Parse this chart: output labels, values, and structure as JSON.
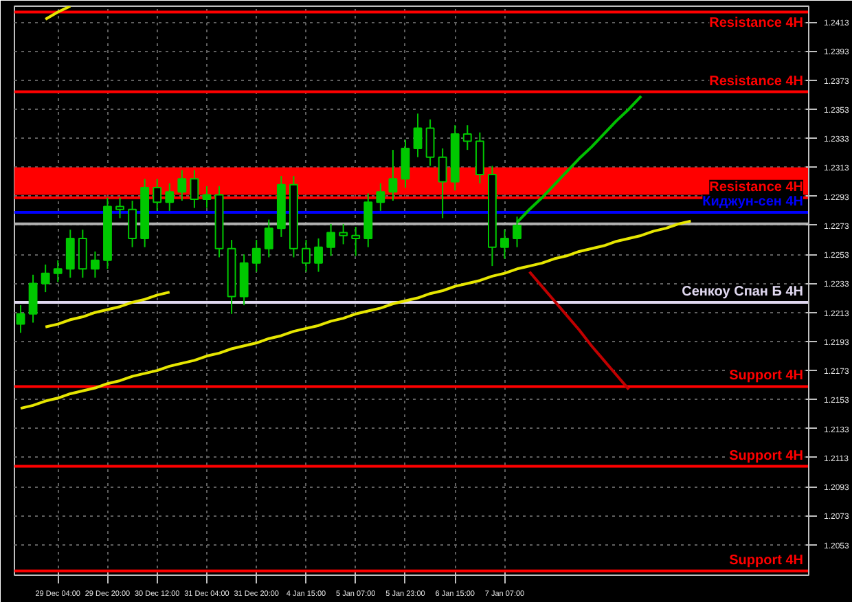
{
  "chart_data": {
    "type": "candlestick",
    "color": "#00c800",
    "categories": [
      null,
      null,
      null,
      "29 Dec 04:00",
      null,
      null,
      null,
      "29 Dec 20:00",
      null,
      null,
      null,
      "30 Dec 12:00",
      null,
      null,
      null,
      "31 Dec 04:00",
      null,
      null,
      null,
      "31 Dec 20:00",
      null,
      null,
      null,
      "4 Jan 15:00",
      null,
      null,
      null,
      "5 Jan 07:00",
      null,
      null,
      null,
      "5 Jan 23:00",
      null,
      null,
      null,
      "6 Jan 15:00",
      null,
      null,
      null,
      "7 Jan 07:00",
      null,
      null,
      null,
      null,
      null,
      null,
      null,
      null,
      null,
      null,
      null,
      null,
      null,
      null,
      null,
      null,
      null,
      null,
      null,
      null,
      null,
      null,
      null,
      null
    ],
    "ohlc": [
      [
        1.2205,
        1.2218,
        1.2199,
        1.2212
      ],
      [
        1.2212,
        1.2239,
        1.2206,
        1.2233
      ],
      [
        1.2233,
        1.2246,
        1.2227,
        1.224
      ],
      [
        1.224,
        1.2249,
        1.2234,
        1.2243
      ],
      [
        1.2243,
        1.227,
        1.2237,
        1.2264
      ],
      [
        1.2264,
        1.227,
        1.2237,
        1.2243
      ],
      [
        1.2243,
        1.2255,
        1.2237,
        1.2249
      ],
      [
        1.2249,
        1.2292,
        1.2243,
        1.2286
      ],
      [
        1.2286,
        1.2292,
        1.2278,
        1.2284
      ],
      [
        1.2284,
        1.229,
        1.2258,
        1.2264
      ],
      [
        1.2264,
        1.2305,
        1.2258,
        1.2299
      ],
      [
        1.2299,
        1.2305,
        1.2283,
        1.2289
      ],
      [
        1.2289,
        1.2302,
        1.2283,
        1.2296
      ],
      [
        1.2296,
        1.2311,
        1.229,
        1.2305
      ],
      [
        1.2305,
        1.2311,
        1.2285,
        1.2291
      ],
      [
        1.2291,
        1.23,
        1.2285,
        1.2294
      ],
      [
        1.2294,
        1.23,
        1.2251,
        1.2257
      ],
      [
        1.2257,
        1.2263,
        1.2212,
        1.2224
      ],
      [
        1.2224,
        1.2253,
        1.2218,
        1.2247
      ],
      [
        1.2247,
        1.2263,
        1.2241,
        1.2257
      ],
      [
        1.2257,
        1.2277,
        1.2251,
        1.2271
      ],
      [
        1.2271,
        1.2307,
        1.2265,
        1.2301
      ],
      [
        1.2301,
        1.2307,
        1.2251,
        1.2257
      ],
      [
        1.2257,
        1.2263,
        1.2241,
        1.2247
      ],
      [
        1.2247,
        1.2264,
        1.2241,
        1.2258
      ],
      [
        1.2258,
        1.2274,
        1.2252,
        1.2268
      ],
      [
        1.2268,
        1.2274,
        1.226,
        1.2266
      ],
      [
        1.2266,
        1.2272,
        1.2252,
        1.2264
      ],
      [
        1.2264,
        1.2295,
        1.2258,
        1.2289
      ],
      [
        1.2289,
        1.2302,
        1.2283,
        1.2296
      ],
      [
        1.2296,
        1.2325,
        1.229,
        1.2305
      ],
      [
        1.2305,
        1.2332,
        1.2299,
        1.2326
      ],
      [
        1.2326,
        1.235,
        1.232,
        1.234
      ],
      [
        1.234,
        1.2346,
        1.2314,
        1.232
      ],
      [
        1.232,
        1.2326,
        1.2278,
        1.2303
      ],
      [
        1.2303,
        1.2342,
        1.2297,
        1.2336
      ],
      [
        1.2336,
        1.2342,
        1.2325,
        1.2331
      ],
      [
        1.2331,
        1.2337,
        1.2302,
        1.2308
      ],
      [
        1.2308,
        1.2314,
        1.2245,
        1.2258
      ],
      [
        1.2258,
        1.227,
        1.225,
        1.2264
      ],
      [
        1.2264,
        1.2279,
        1.2258,
        1.2273
      ],
      null,
      null,
      null,
      null,
      null,
      null,
      null,
      null,
      null,
      null,
      null,
      null,
      null,
      null,
      null,
      null,
      null,
      null,
      null,
      null,
      null,
      null,
      null
    ],
    "series": [
      {
        "type": "line",
        "color": "#e6e600",
        "values": [
          1.2147,
          1.2149,
          1.2152,
          1.2154,
          1.2157,
          1.2159,
          1.2161,
          1.2164,
          1.2166,
          1.2169,
          1.2171,
          1.2173,
          1.2176,
          1.2178,
          1.218,
          1.2183,
          1.2185,
          1.2188,
          1.219,
          1.2192,
          1.2195,
          1.2197,
          1.22,
          1.2202,
          1.2204,
          1.2207,
          1.2209,
          1.2212,
          1.2214,
          1.2216,
          1.2219,
          1.2221,
          1.2223,
          1.2226,
          1.2228,
          1.2231,
          1.2233,
          1.2235,
          1.2238,
          1.224,
          1.2243,
          1.2245,
          1.2247,
          1.225,
          1.2252,
          1.2255,
          1.2257,
          1.2259,
          1.2262,
          1.2264,
          1.2266,
          1.2269,
          1.2271,
          1.2274,
          1.2276,
          null,
          null,
          null,
          null,
          null,
          null,
          null,
          null,
          null
        ]
      },
      {
        "type": "line",
        "color": "#e6e600",
        "values": [
          null,
          null,
          1.2203,
          1.2205,
          1.2208,
          1.221,
          1.2213,
          1.2215,
          1.2217,
          1.222,
          1.2222,
          1.2225,
          1.2227,
          null,
          null,
          null,
          null,
          null,
          null,
          null,
          null,
          null,
          null,
          null,
          null,
          null,
          null,
          null,
          null,
          null,
          null,
          null,
          null,
          null,
          null,
          null,
          null,
          null,
          null,
          null,
          null,
          null,
          null,
          null,
          null,
          null,
          null,
          null,
          null,
          null,
          null,
          null,
          null,
          null,
          null,
          null,
          null,
          null,
          null,
          null,
          null,
          null,
          null,
          null
        ]
      },
      {
        "type": "line",
        "color": "#e6e600",
        "values": [
          null,
          null,
          1.2415,
          1.242,
          1.2424,
          null,
          null,
          null,
          null,
          null,
          null,
          null,
          null,
          null,
          null,
          null,
          null,
          null,
          null,
          null,
          null,
          null,
          null,
          null,
          null,
          null,
          null,
          null,
          null,
          null,
          null,
          null,
          null,
          null,
          null,
          null,
          null,
          null,
          null,
          null,
          null,
          null,
          null,
          null,
          null,
          null,
          null,
          null,
          null,
          null,
          null,
          null,
          null,
          null,
          null,
          null,
          null,
          null,
          null,
          null,
          null,
          null,
          null,
          null
        ]
      },
      {
        "type": "line",
        "color": "#00c000",
        "values": [
          null,
          null,
          null,
          null,
          null,
          null,
          null,
          null,
          null,
          null,
          null,
          null,
          null,
          null,
          null,
          null,
          null,
          null,
          null,
          null,
          null,
          null,
          null,
          null,
          null,
          null,
          null,
          null,
          null,
          null,
          null,
          null,
          null,
          null,
          null,
          null,
          null,
          null,
          null,
          null,
          1.2275,
          1.2284,
          1.2292,
          1.2301,
          1.231,
          1.2319,
          1.2327,
          1.2336,
          1.2345,
          1.2353,
          1.2362,
          null,
          null,
          null,
          null,
          null,
          null,
          null,
          null,
          null,
          null,
          null,
          null,
          null
        ]
      },
      {
        "type": "line",
        "color": "#c00000",
        "values": [
          null,
          null,
          null,
          null,
          null,
          null,
          null,
          null,
          null,
          null,
          null,
          null,
          null,
          null,
          null,
          null,
          null,
          null,
          null,
          null,
          null,
          null,
          null,
          null,
          null,
          null,
          null,
          null,
          null,
          null,
          null,
          null,
          null,
          null,
          null,
          null,
          null,
          null,
          null,
          null,
          null,
          1.2241,
          1.2231,
          1.2221,
          1.2211,
          1.2201,
          1.219,
          1.218,
          1.217,
          1.216,
          null,
          null,
          null,
          null,
          null,
          null,
          null,
          null,
          null,
          null,
          null,
          null,
          null,
          null
        ]
      }
    ],
    "bands": [
      {
        "axis": "y",
        "from": 1.2294,
        "to": 1.2313,
        "color": "#ff0000"
      }
    ],
    "ref_lines": [
      {
        "axis": "y",
        "value": 1.242,
        "label": "Resistance 4H",
        "color": "#ff0000"
      },
      {
        "axis": "y",
        "value": 1.2365,
        "label": "Resistance 4H",
        "color": "#ff0000"
      },
      {
        "axis": "y",
        "value": 1.2292,
        "label": "Resistance 4H",
        "color": "#ff0000"
      },
      {
        "axis": "y",
        "value": 1.2282,
        "label": "Киджун-сен 4H",
        "color": "#0000ff"
      },
      {
        "axis": "y",
        "value": 1.2274,
        "label": null,
        "color": "#b0b0b0"
      },
      {
        "axis": "y",
        "value": 1.222,
        "label": "Сенкоу Спан Б 4H",
        "color": "#e0d8f0"
      },
      {
        "axis": "y",
        "value": 1.2162,
        "label": "Support 4H",
        "color": "#ff0000"
      },
      {
        "axis": "y",
        "value": 1.2107,
        "label": "Support 4H",
        "color": "#ff0000"
      },
      {
        "axis": "y",
        "value": 1.2035,
        "label": "Support 4H",
        "color": "#ff0000"
      }
    ],
    "ylim": [
      1.2032,
      1.2424
    ],
    "yticks": [
      1.2053,
      1.2073,
      1.2093,
      1.2113,
      1.2133,
      1.2153,
      1.2173,
      1.2193,
      1.2213,
      1.2233,
      1.2253,
      1.2273,
      1.2293,
      1.2313,
      1.2333,
      1.2353,
      1.2373,
      1.2393,
      1.2413
    ],
    "grid": true
  }
}
